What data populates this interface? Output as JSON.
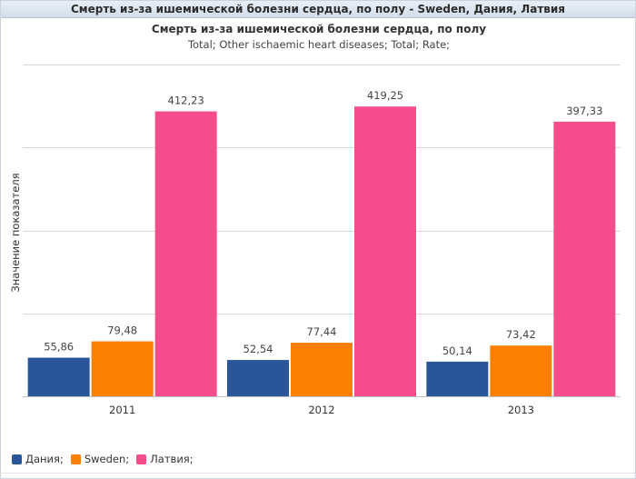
{
  "window": {
    "title": "Смерть из-за ишемической болезни сердца, по полу - Sweden, Дания, Латвия"
  },
  "chart_data": {
    "type": "bar",
    "title": "Смерть из-за ишемической болезни сердца, по полу",
    "subtitle": "Total; Other ischaemic heart diseases; Total; Rate;",
    "ylabel": "Значение показателя",
    "xlabel": "",
    "categories": [
      "2011",
      "2012",
      "2013"
    ],
    "ylim": [
      0,
      480
    ],
    "grid": true,
    "legend_position": "bottom-left",
    "series": [
      {
        "name": "Дания;",
        "color": "#2a5599",
        "values": [
          55.86,
          52.54,
          50.14
        ],
        "labels": [
          "55,86",
          "52,54",
          "50,14"
        ]
      },
      {
        "name": "Sweden;",
        "color": "#f98000",
        "values": [
          79.48,
          77.44,
          73.42
        ],
        "labels": [
          "79,48",
          "77,44",
          "73,42"
        ]
      },
      {
        "name": "Латвия;",
        "color": "#f54c8b",
        "values": [
          412.23,
          419.25,
          397.33
        ],
        "labels": [
          "412,23",
          "419,25",
          "397,33"
        ]
      }
    ]
  }
}
